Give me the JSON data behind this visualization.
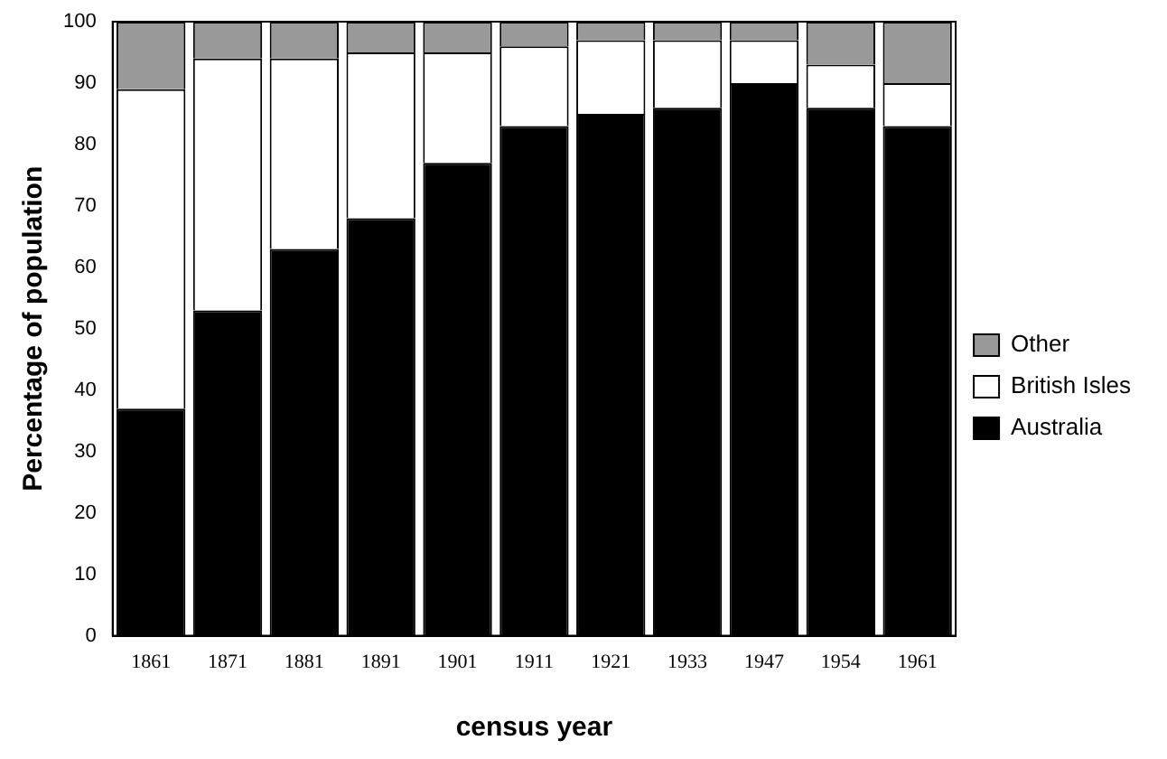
{
  "chart_data": {
    "type": "bar",
    "stacked": true,
    "xlabel": "census year",
    "ylabel": "Percentage of population",
    "categories": [
      "1861",
      "1871",
      "1881",
      "1891",
      "1901",
      "1911",
      "1921",
      "1933",
      "1947",
      "1954",
      "1961"
    ],
    "series": [
      {
        "name": "Australia",
        "color": "#000000",
        "values": [
          37,
          53,
          63,
          68,
          77,
          83,
          85,
          86,
          90,
          86,
          83
        ]
      },
      {
        "name": "British Isles",
        "color": "#ffffff",
        "values": [
          52,
          41,
          31,
          27,
          18,
          13,
          12,
          11,
          7,
          7,
          7
        ]
      },
      {
        "name": "Other",
        "color": "#999999",
        "values": [
          11,
          6,
          6,
          5,
          5,
          4,
          3,
          3,
          3,
          7,
          10
        ]
      }
    ],
    "ylim": [
      0,
      100
    ],
    "yticks": [
      0,
      10,
      20,
      30,
      40,
      50,
      60,
      70,
      80,
      90,
      100
    ],
    "grid": false,
    "legend": "right"
  }
}
